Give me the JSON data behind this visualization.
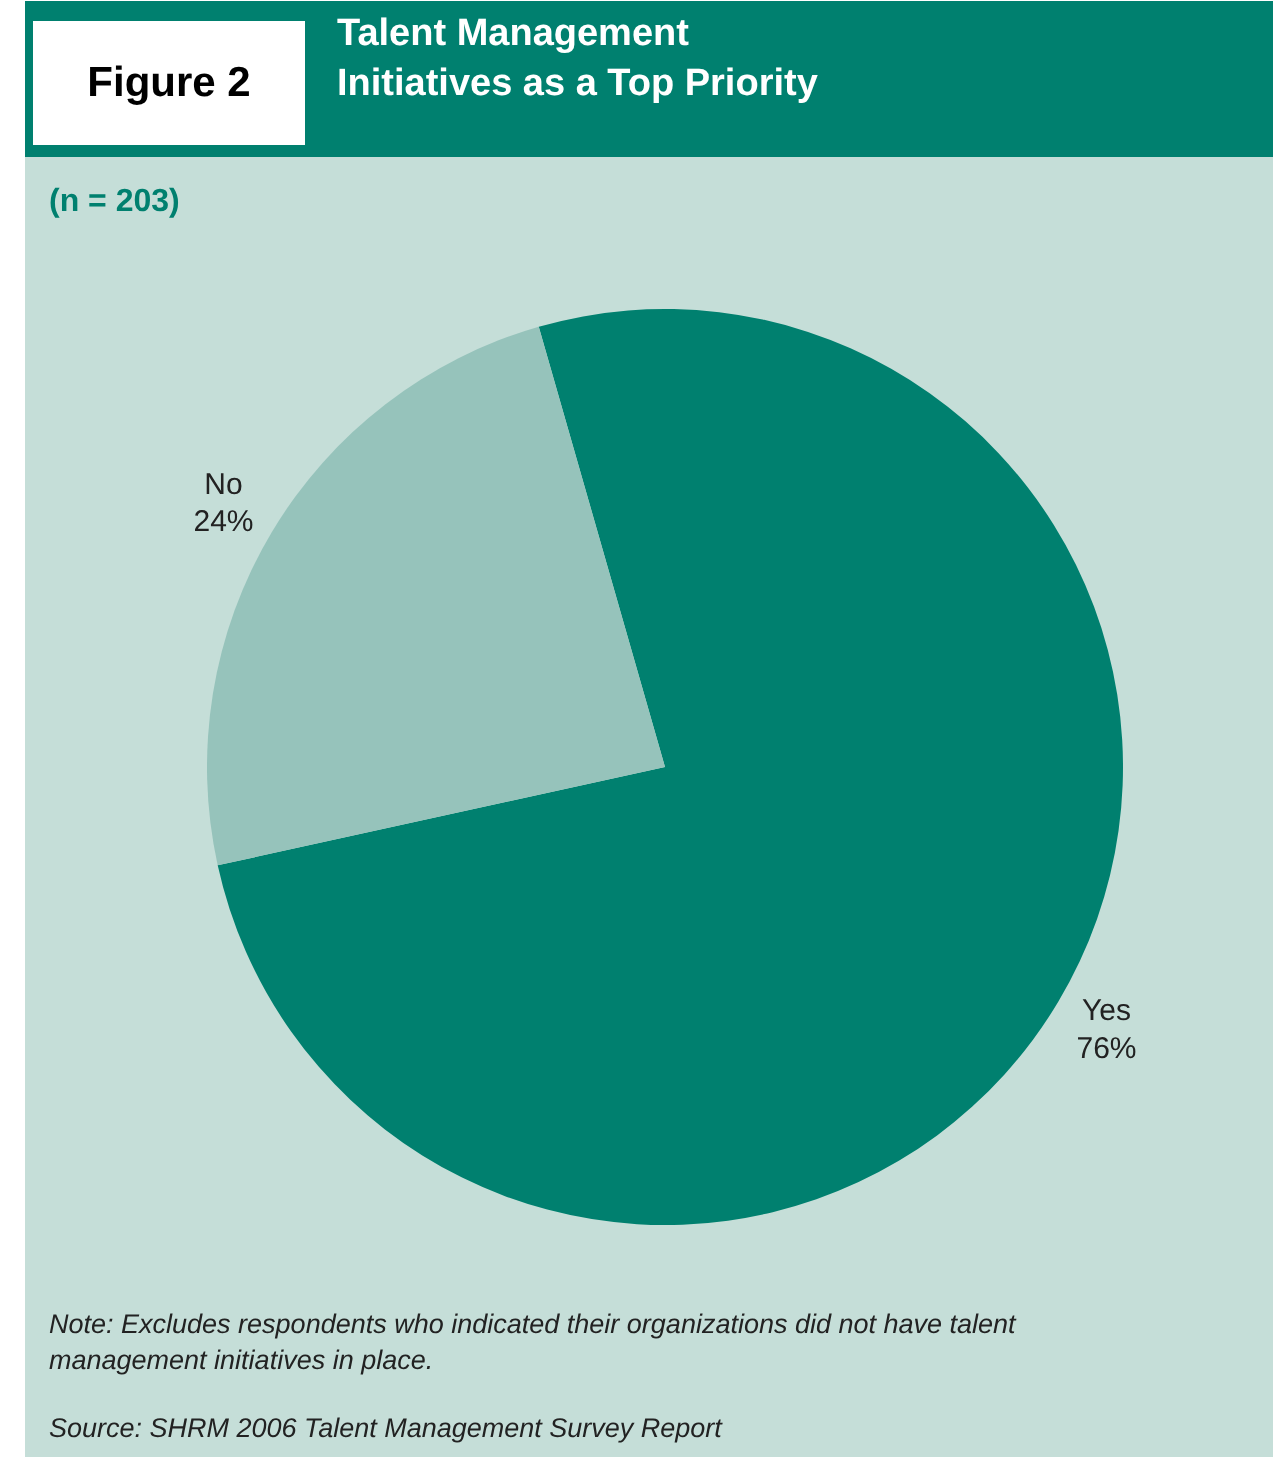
{
  "chart_data": {
    "type": "pie",
    "title": "Talent Management\nInitiatives as a Top Priority",
    "subtitle": "(n = 203)",
    "categories": [
      "Yes",
      "No"
    ],
    "values": [
      76,
      24
    ],
    "colors": [
      "#00806f",
      "#96c3bb"
    ],
    "value_labels": [
      "76%",
      "24%"
    ],
    "annotations": [
      "Figure 2",
      "Note: Excludes respondents who indicated their organizations did not have talent\nmanagement initiatives in place.",
      "Source: SHRM 2006 Talent Management Survey Report"
    ]
  }
}
